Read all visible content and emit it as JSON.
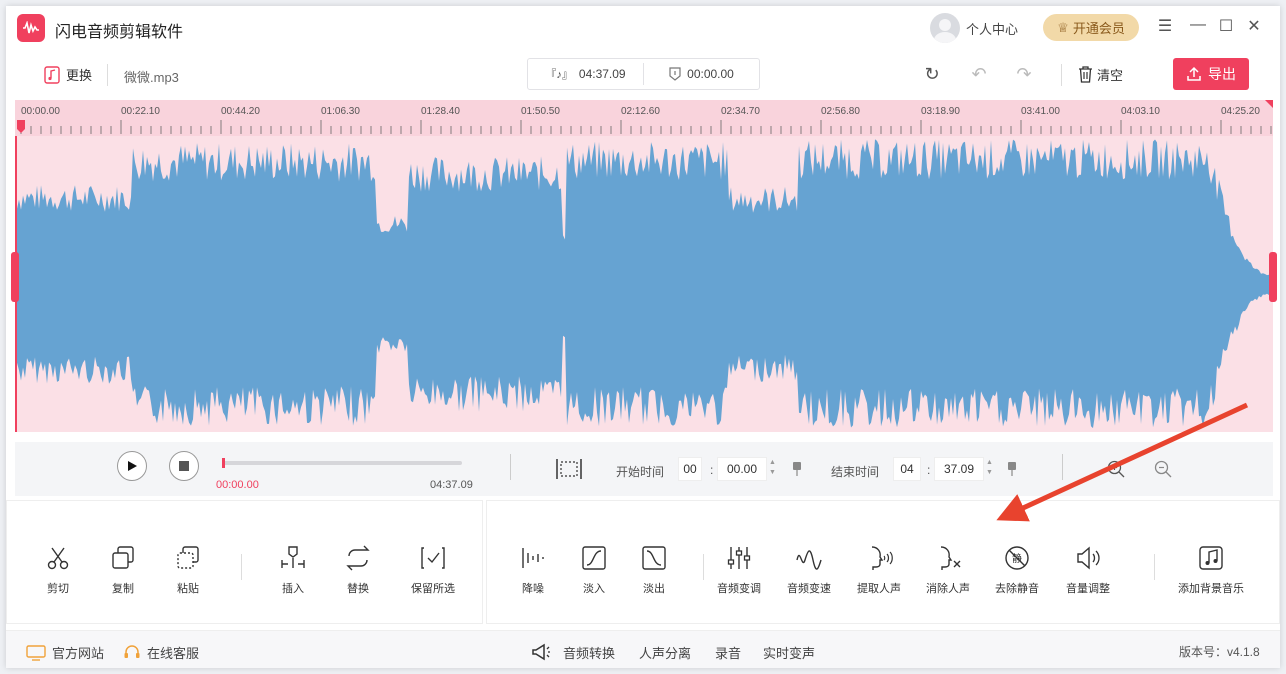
{
  "app": {
    "title": "闪电音频剪辑软件",
    "brand_color": "#f0405e"
  },
  "header": {
    "user_center": "个人中心",
    "vip_button": "开通会员"
  },
  "toolbar": {
    "replace_label": "更换",
    "filename": "微微.mp3",
    "total_duration": "04:37.09",
    "selection_duration": "00:00.00",
    "clear_label": "清空",
    "export_label": "导出"
  },
  "timeline": {
    "ticks": [
      "00:00.00",
      "00:22.10",
      "00:44.20",
      "01:06.30",
      "01:28.40",
      "01:50.50",
      "02:12.60",
      "02:34.70",
      "02:56.80",
      "03:18.90",
      "03:41.00",
      "04:03.10",
      "04:25.20"
    ],
    "wave_color": "#66a3d2"
  },
  "transport": {
    "current_time": "00:00.00",
    "total_time": "04:37.09",
    "start_label": "开始时间",
    "start_min": "00",
    "start_sec": "00.00",
    "end_label": "结束时间",
    "end_min": "04",
    "end_sec": "37.09",
    "progress": 0
  },
  "tools_left": [
    {
      "label": "剪切",
      "icon": "scissors-icon"
    },
    {
      "label": "复制",
      "icon": "copy-icon"
    },
    {
      "label": "粘贴",
      "icon": "paste-icon"
    },
    {
      "label": "插入",
      "icon": "insert-icon"
    },
    {
      "label": "替换",
      "icon": "replace-icon"
    },
    {
      "label": "保留所选",
      "icon": "keep-selection-icon"
    }
  ],
  "tools_right": [
    {
      "label": "降噪",
      "icon": "denoise-icon"
    },
    {
      "label": "淡入",
      "icon": "fade-in-icon"
    },
    {
      "label": "淡出",
      "icon": "fade-out-icon"
    },
    {
      "label": "音频变调",
      "icon": "pitch-icon"
    },
    {
      "label": "音频变速",
      "icon": "speed-icon"
    },
    {
      "label": "提取人声",
      "icon": "extract-vocal-icon"
    },
    {
      "label": "消除人声",
      "icon": "remove-vocal-icon"
    },
    {
      "label": "去除静音",
      "icon": "remove-silence-icon"
    },
    {
      "label": "音量调整",
      "icon": "volume-icon"
    },
    {
      "label": "添加背景音乐",
      "icon": "add-bgm-icon"
    }
  ],
  "footer": {
    "website": "官方网站",
    "support": "在线客服",
    "links": [
      "音频转换",
      "人声分离",
      "录音",
      "实时变声"
    ],
    "version": "版本号：v4.1.8"
  }
}
